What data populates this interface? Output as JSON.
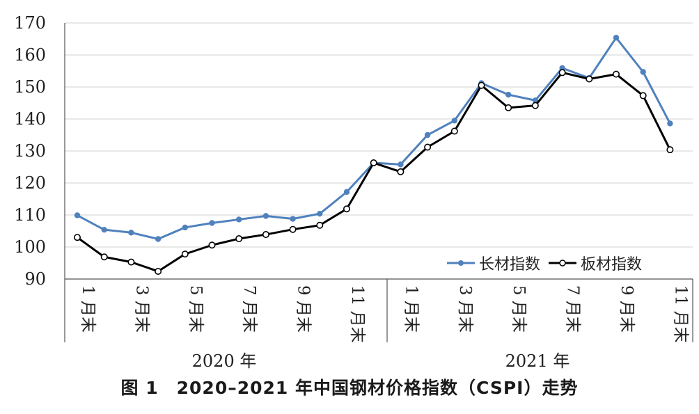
{
  "chart_data": {
    "type": "line",
    "title": "图 1　2020–2021 年中国钢材价格指数（CSPI）走势",
    "ylim": [
      90,
      170
    ],
    "yticks": [
      "170",
      "160",
      "150",
      "140",
      "130",
      "120",
      "110",
      "100",
      "90"
    ],
    "x_tick_labels": [
      "1 月末",
      "3 月末",
      "5 月末",
      "7 月末",
      "9 月末",
      "11 月末",
      "1 月末",
      "3 月末",
      "5 月末",
      "7 月末",
      "9 月末",
      "11 月末"
    ],
    "year_labels": [
      "2020 年",
      "2021 年"
    ],
    "grid": true,
    "legend_position": "bottom-right",
    "series": [
      {
        "name": "长材指数",
        "color": "#4f81bd",
        "values": [
          109.9,
          105.4,
          104.5,
          102.5,
          106.1,
          107.5,
          108.6,
          109.7,
          108.8,
          110.4,
          117.2,
          126.3,
          125.8,
          135.0,
          139.5,
          151.2,
          147.6,
          145.8,
          155.9,
          152.8,
          165.4,
          154.7,
          138.6
        ]
      },
      {
        "name": "板材指数",
        "color": "#000000",
        "values": [
          103.0,
          96.9,
          95.3,
          92.4,
          97.8,
          100.6,
          102.6,
          103.9,
          105.5,
          106.8,
          111.9,
          126.3,
          123.5,
          131.2,
          136.2,
          150.5,
          143.5,
          144.2,
          154.5,
          152.5,
          154.0,
          147.3,
          130.4
        ]
      }
    ]
  }
}
